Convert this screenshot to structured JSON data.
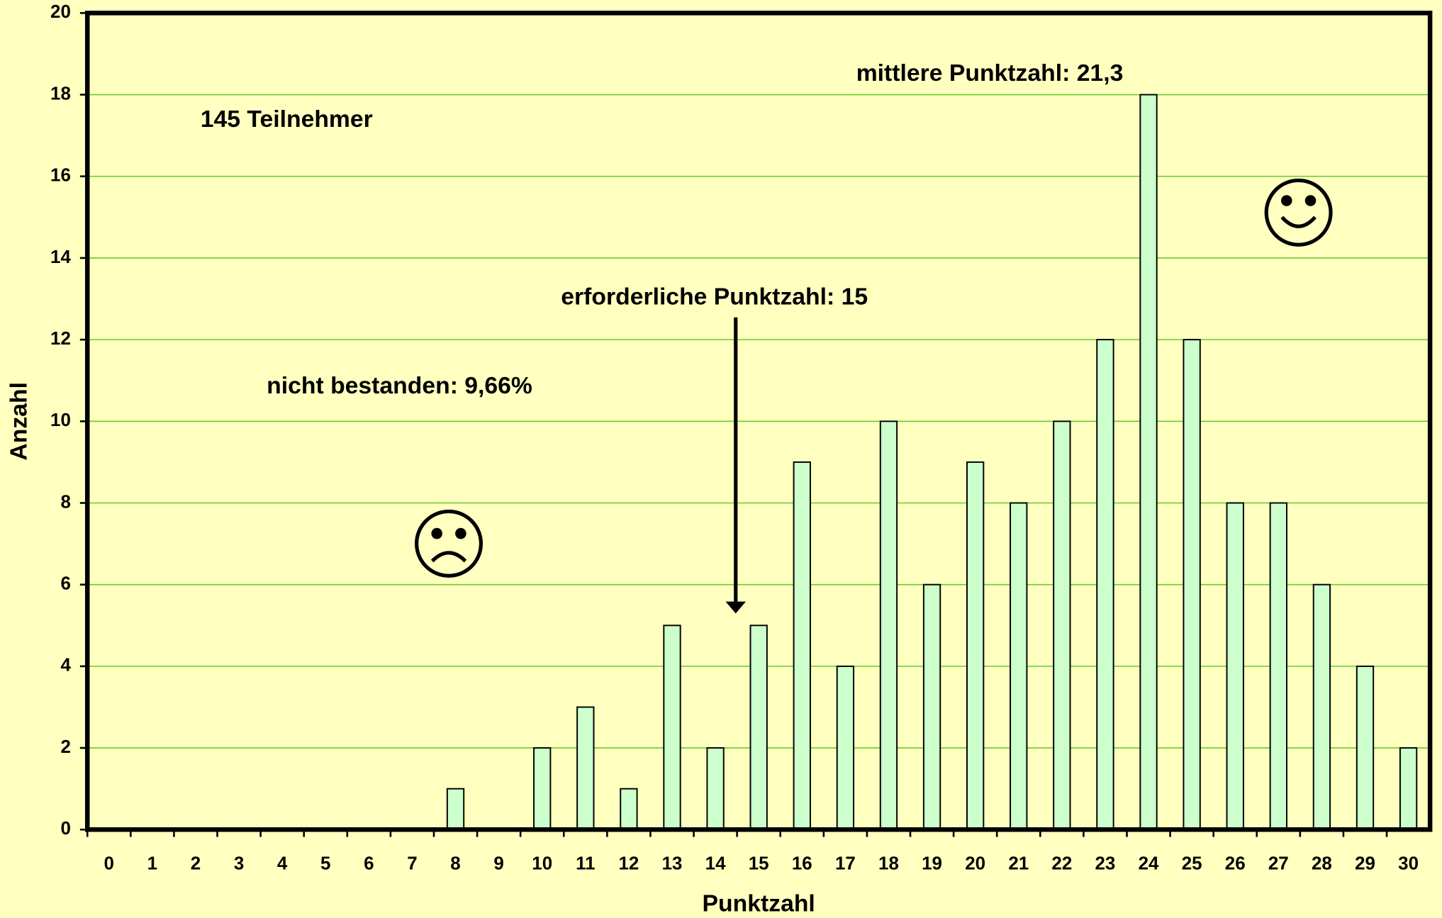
{
  "chart_data": {
    "type": "bar",
    "x_label": "Punktzahl",
    "y_label": "Anzahl",
    "annotations": [
      "145 Teilnehmer",
      "nicht bestanden: 9,66%",
      "erforderliche Punktzahl: 15",
      "mittlere Punktzahl: 21,3"
    ],
    "categories": [
      "0",
      "1",
      "2",
      "3",
      "4",
      "5",
      "6",
      "7",
      "8",
      "9",
      "10",
      "11",
      "12",
      "13",
      "14",
      "15",
      "16",
      "17",
      "18",
      "19",
      "20",
      "21",
      "22",
      "23",
      "24",
      "25",
      "26",
      "27",
      "28",
      "29",
      "30"
    ],
    "values": [
      0,
      0,
      0,
      0,
      0,
      0,
      0,
      0,
      1,
      0,
      2,
      3,
      1,
      5,
      2,
      5,
      9,
      4,
      10,
      6,
      9,
      8,
      10,
      12,
      18,
      12,
      8,
      8,
      6,
      4,
      2
    ],
    "color": "#ccffcc",
    "ylim": [
      0,
      20
    ],
    "yticks": [
      0,
      2,
      4,
      6,
      8,
      10,
      12,
      14,
      16,
      18,
      20
    ],
    "grid": true,
    "grid_color": "#66cc33"
  }
}
